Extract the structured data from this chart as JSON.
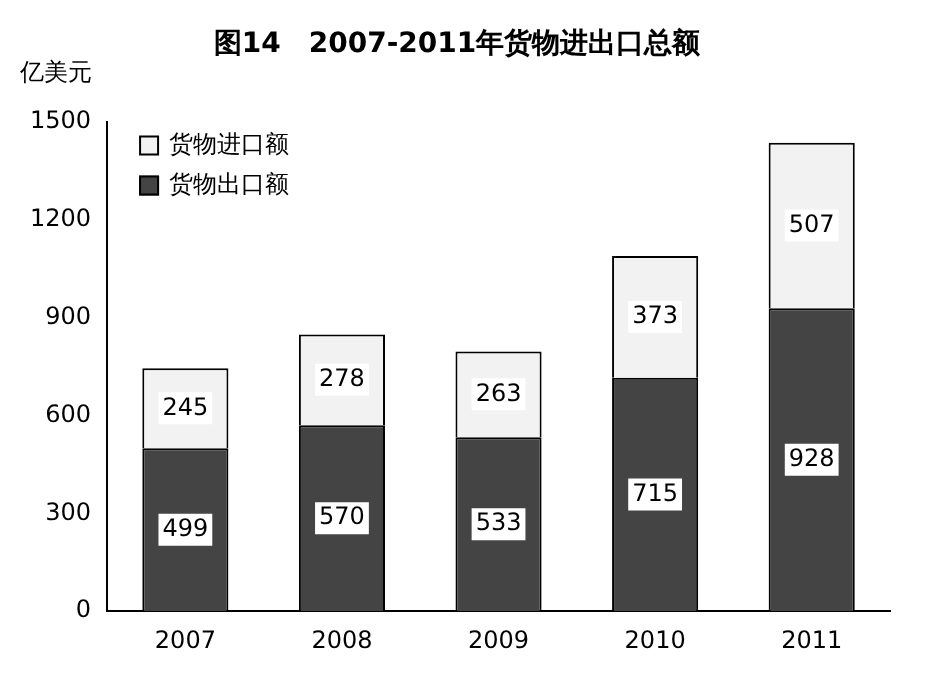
{
  "chart_data": {
    "type": "bar",
    "title": "图14　2007-2011年货物进出口总额",
    "ylabel": "亿美元",
    "categories": [
      "2007",
      "2008",
      "2009",
      "2010",
      "2011"
    ],
    "stacked": true,
    "series": [
      {
        "name": "货物出口额",
        "color": "#444444",
        "values": [
          499,
          570,
          533,
          715,
          928
        ]
      },
      {
        "name": "货物进口额",
        "color": "#f2f2f2",
        "values": [
          245,
          278,
          263,
          373,
          507
        ]
      }
    ],
    "ylim": [
      0,
      1500
    ],
    "yticks": [
      0,
      300,
      600,
      900,
      1200,
      1500
    ],
    "grid": false,
    "legend": "top left",
    "data_labels": true
  }
}
